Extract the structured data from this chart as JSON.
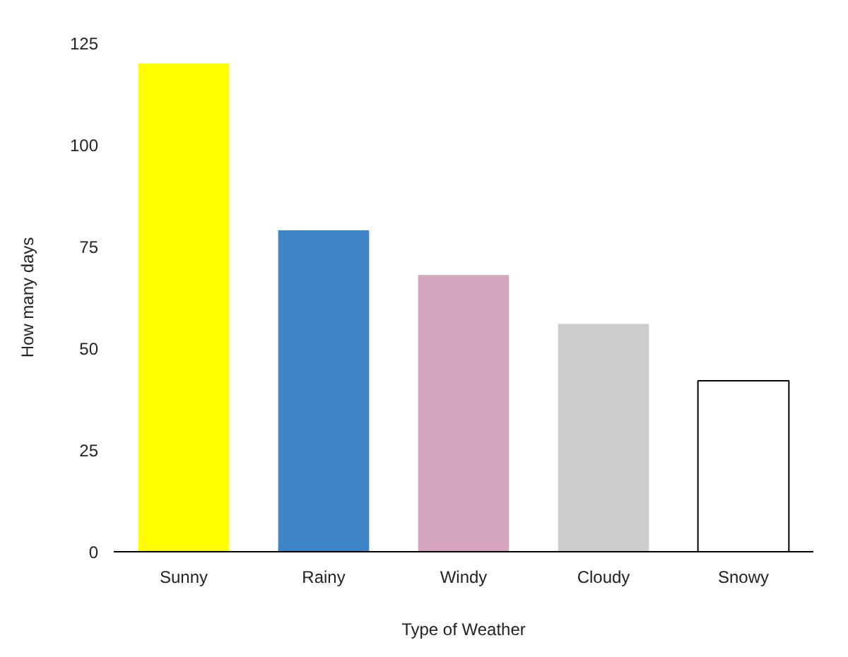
{
  "chart_data": {
    "type": "bar",
    "xlabel": "Type of Weather",
    "ylabel": "How many days",
    "categories": [
      "Sunny",
      "Rainy",
      "Windy",
      "Cloudy",
      "Snowy"
    ],
    "values": [
      120,
      79,
      68,
      56,
      42
    ],
    "colors": [
      "#ffff00",
      "#3d85c6",
      "#d5a6bd",
      "#cccccc",
      "#ffffff"
    ],
    "ylim": [
      0,
      125
    ],
    "yticks": [
      0,
      25,
      50,
      75,
      100,
      125
    ],
    "grid": false
  }
}
